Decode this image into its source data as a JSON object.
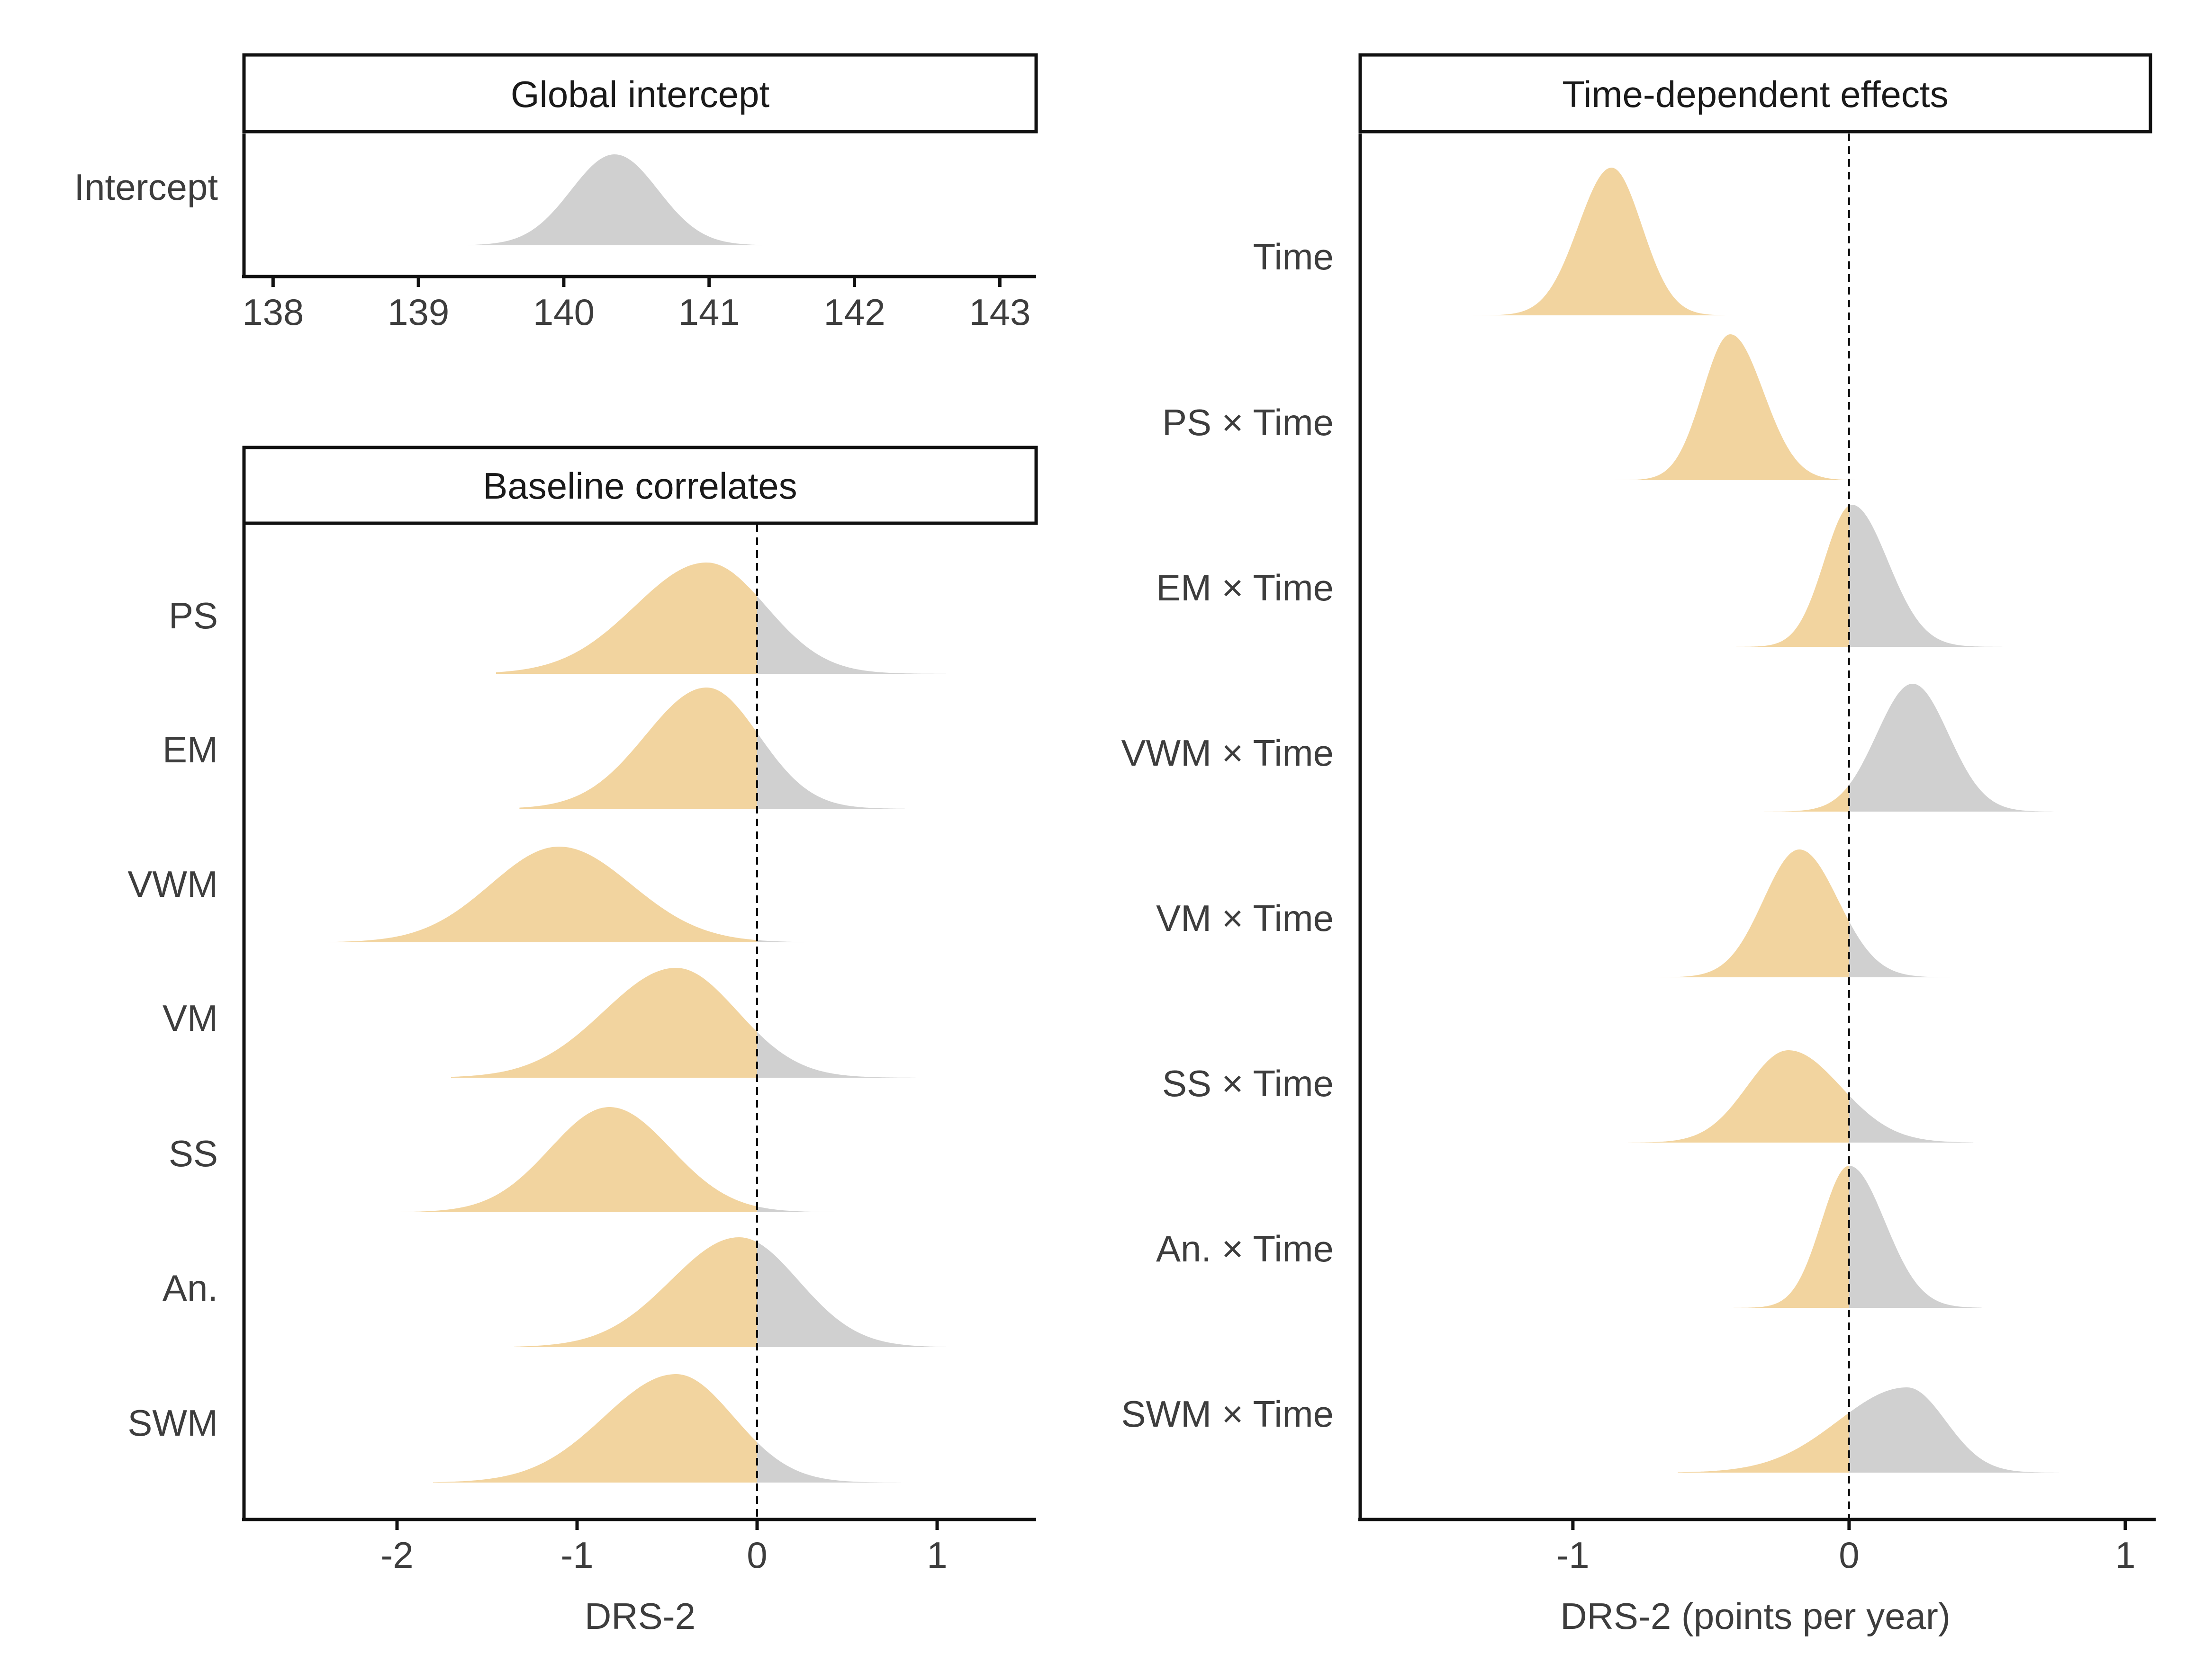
{
  "colors": {
    "below_zero": "#F2D49F",
    "above_zero": "#D0D0D0",
    "axis": "#111111",
    "text": "#3d3d3d"
  },
  "chart_data": [
    {
      "type": "area",
      "subtype": "ridgeline-posterior-density",
      "panel": "global",
      "title": "Global intercept",
      "xlabel": "",
      "xlim": [
        137.8,
        143.25
      ],
      "xticks": [
        138,
        139,
        140,
        141,
        142,
        143
      ],
      "reference_line": null,
      "single_fill": "gray",
      "series": [
        {
          "name": "Intercept",
          "mode": 140.35,
          "sd_left": 0.3,
          "sd_right": 0.3,
          "min": 139.3,
          "max": 141.45
        }
      ]
    },
    {
      "type": "area",
      "subtype": "ridgeline-posterior-density",
      "panel": "baseline",
      "title": "Baseline correlates",
      "xlabel": "DRS-2",
      "xlim": [
        -2.85,
        1.55
      ],
      "xticks": [
        -2,
        -1,
        0,
        1
      ],
      "reference_line": 0,
      "series": [
        {
          "name": "PS",
          "mode": -0.28,
          "sd_left": 0.4,
          "sd_right": 0.33,
          "min": -1.45,
          "max": 1.05
        },
        {
          "name": "EM",
          "mode": -0.28,
          "sd_left": 0.34,
          "sd_right": 0.29,
          "min": -1.32,
          "max": 0.82
        },
        {
          "name": "VWM",
          "mode": -1.1,
          "sd_left": 0.38,
          "sd_right": 0.4,
          "min": -2.4,
          "max": 0.4
        },
        {
          "name": "VM",
          "mode": -0.45,
          "sd_left": 0.4,
          "sd_right": 0.34,
          "min": -1.7,
          "max": 0.88
        },
        {
          "name": "SS",
          "mode": -0.82,
          "sd_left": 0.33,
          "sd_right": 0.34,
          "min": -1.98,
          "max": 0.43
        },
        {
          "name": "An.",
          "mode": -0.1,
          "sd_left": 0.38,
          "sd_right": 0.33,
          "min": -1.35,
          "max": 1.05
        },
        {
          "name": "SWM",
          "mode": -0.45,
          "sd_left": 0.4,
          "sd_right": 0.32,
          "min": -1.8,
          "max": 0.8
        }
      ]
    },
    {
      "type": "area",
      "subtype": "ridgeline-posterior-density",
      "panel": "time",
      "title": "Time-dependent effects",
      "xlabel": "DRS-2 (points per year)",
      "xlim": [
        -1.77,
        1.11
      ],
      "xticks": [
        -1,
        0,
        1
      ],
      "reference_line": 0,
      "series": [
        {
          "name": "Time",
          "mode": -0.86,
          "sd_left": 0.12,
          "sd_right": 0.11,
          "min": -1.37,
          "max": -0.45
        },
        {
          "name": "PS × Time",
          "mode": -0.43,
          "sd_left": 0.1,
          "sd_right": 0.12,
          "min": -0.92,
          "max": 0.02
        },
        {
          "name": "EM × Time",
          "mode": 0.01,
          "sd_left": 0.1,
          "sd_right": 0.13,
          "min": -0.48,
          "max": 0.56
        },
        {
          "name": "VWM × Time",
          "mode": 0.23,
          "sd_left": 0.13,
          "sd_right": 0.13,
          "min": -0.37,
          "max": 0.74
        },
        {
          "name": "VM × Time",
          "mode": -0.18,
          "sd_left": 0.13,
          "sd_right": 0.14,
          "min": -0.73,
          "max": 0.48
        },
        {
          "name": "SS × Time",
          "mode": -0.22,
          "sd_left": 0.15,
          "sd_right": 0.19,
          "min": -0.8,
          "max": 0.45
        },
        {
          "name": "An. × Time",
          "mode": 0.0,
          "sd_left": 0.1,
          "sd_right": 0.13,
          "min": -0.48,
          "max": 0.48
        },
        {
          "name": "SWM × Time",
          "mode": 0.21,
          "sd_left": 0.25,
          "sd_right": 0.14,
          "min": -0.62,
          "max": 0.76
        }
      ]
    }
  ]
}
